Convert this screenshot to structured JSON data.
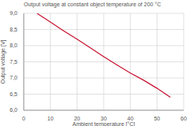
{
  "chart_data": {
    "type": "line",
    "title": "Output voltage at constant object temperature of 200 °C",
    "xlabel": "Ambient temperature [°C]",
    "ylabel": "Output voltage [V]",
    "x": [
      5,
      10,
      15,
      20,
      25,
      30,
      35,
      40,
      45,
      50,
      55
    ],
    "series": [
      {
        "name": "Output voltage",
        "color": "#c8102e",
        "values": [
          9.0,
          8.73,
          8.46,
          8.2,
          7.93,
          7.66,
          7.4,
          7.15,
          6.93,
          6.68,
          6.4
        ]
      }
    ],
    "xlim": [
      0,
      60
    ],
    "xticks": [
      0,
      10,
      20,
      30,
      40,
      50,
      60
    ],
    "ylim": [
      6.0,
      9.0
    ],
    "yticks": [
      {
        "value": 6.0,
        "label": "6,0"
      },
      {
        "value": 6.5,
        "label": "6,5"
      },
      {
        "value": 7.0,
        "label": "7,0"
      },
      {
        "value": 7.5,
        "label": "7,5"
      },
      {
        "value": 8.0,
        "label": "8,0"
      },
      {
        "value": 8.5,
        "label": "8,5"
      },
      {
        "value": 9.0,
        "label": "9,0"
      }
    ],
    "grid": true
  }
}
